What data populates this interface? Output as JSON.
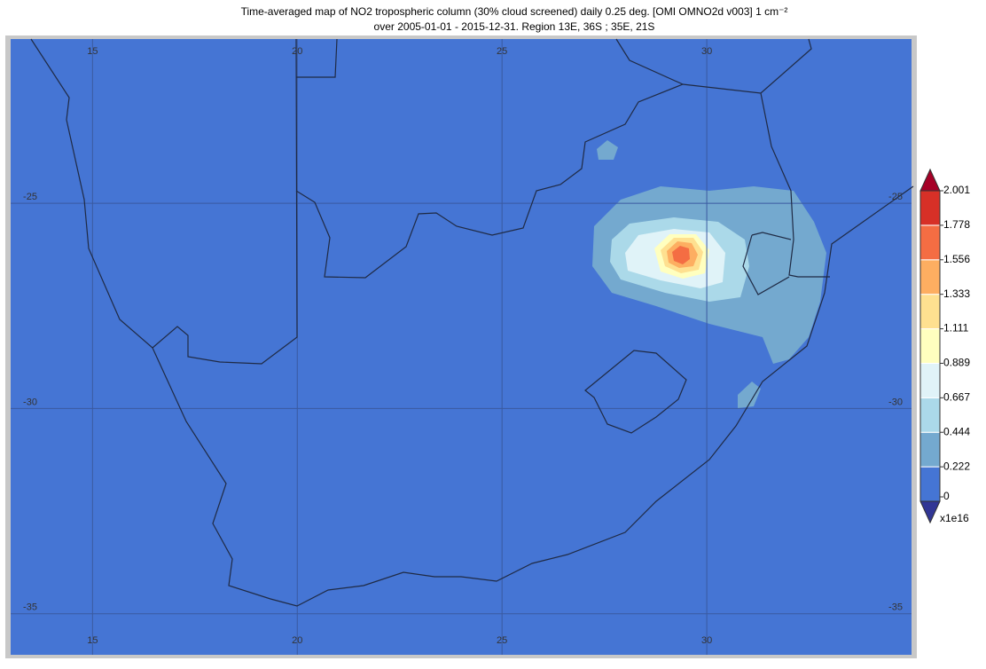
{
  "title": {
    "line1": "Time-averaged map of NO2 tropospheric column (30% cloud screened) daily 0.25 deg. [OMI OMNO2d v003] 1 cm⁻²",
    "line2": "over 2005-01-01 - 2015-12-31. Region 13E, 36S ; 35E, 21S"
  },
  "map": {
    "lon_range": [
      13,
      35
    ],
    "lat_range": [
      -36,
      -21
    ],
    "lon_ticks": [
      15,
      20,
      25,
      30
    ],
    "lat_ticks": [
      -25,
      -30,
      -35
    ],
    "background": "#4575d4"
  },
  "colorbar": {
    "levels": [
      0,
      0.222,
      0.444,
      0.667,
      0.889,
      1.111,
      1.333,
      1.556,
      1.778,
      2.001
    ],
    "colors": [
      "#4575d4",
      "#74a9cf",
      "#abd9e9",
      "#e0f3f8",
      "#ffffbf",
      "#fee090",
      "#fdae61",
      "#f46d43",
      "#d73027"
    ],
    "over_color": "#a50026",
    "under_color": "#313695",
    "unit": "x1e16"
  }
}
